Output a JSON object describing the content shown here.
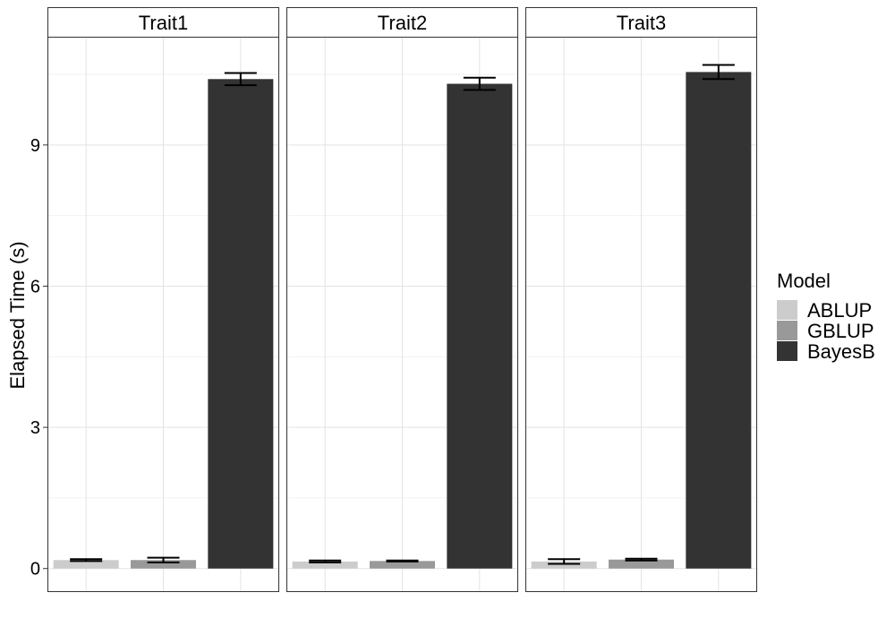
{
  "chart_data": {
    "type": "bar",
    "ylabel": "Elapsed Time (s)",
    "xlabel": "",
    "ylim": [
      -0.5,
      11.3
    ],
    "yticks": [
      0,
      3,
      6,
      9
    ],
    "grid": true,
    "legend_position": "right",
    "legend_title": "Model",
    "categories": [
      "ABLUP",
      "GBLUP",
      "BayesB"
    ],
    "facets": [
      {
        "title": "Trait1",
        "values": [
          0.18,
          0.18,
          10.4
        ],
        "error": [
          0.02,
          0.05,
          0.13
        ]
      },
      {
        "title": "Trait2",
        "values": [
          0.15,
          0.16,
          10.3
        ],
        "error": [
          0.02,
          0.01,
          0.13
        ]
      },
      {
        "title": "Trait3",
        "values": [
          0.15,
          0.19,
          10.55
        ],
        "error": [
          0.05,
          0.02,
          0.15
        ]
      }
    ],
    "series": [
      {
        "name": "ABLUP",
        "color": "#cccccc"
      },
      {
        "name": "GBLUP",
        "color": "#999999"
      },
      {
        "name": "BayesB",
        "color": "#333333"
      }
    ]
  }
}
